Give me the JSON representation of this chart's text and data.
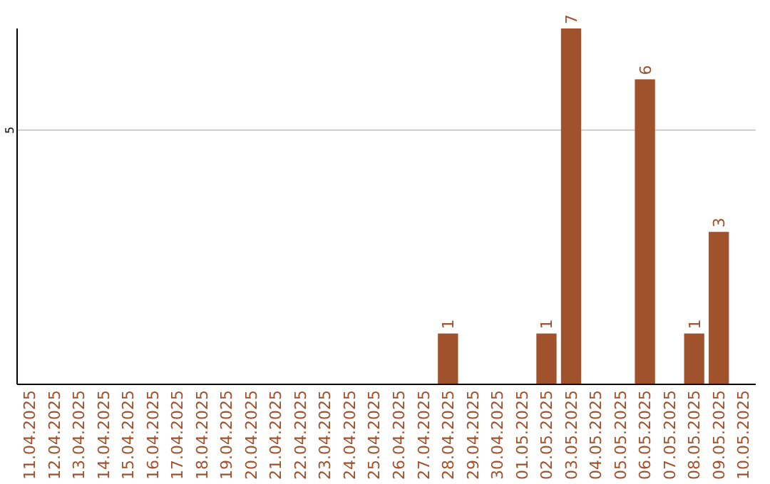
{
  "chart_data": {
    "type": "bar",
    "categories": [
      "11.04.2025",
      "12.04.2025",
      "13.04.2025",
      "14.04.2025",
      "15.04.2025",
      "16.04.2025",
      "17.04.2025",
      "18.04.2025",
      "19.04.2025",
      "20.04.2025",
      "21.04.2025",
      "22.04.2025",
      "23.04.2025",
      "24.04.2025",
      "25.04.2025",
      "26.04.2025",
      "27.04.2025",
      "28.04.2025",
      "29.04.2025",
      "30.04.2025",
      "01.05.2025",
      "02.05.2025",
      "03.05.2025",
      "04.05.2025",
      "05.05.2025",
      "06.05.2025",
      "07.05.2025",
      "08.05.2025",
      "09.05.2025",
      "10.05.2025"
    ],
    "values": [
      null,
      null,
      null,
      null,
      null,
      null,
      null,
      null,
      null,
      null,
      null,
      null,
      null,
      null,
      null,
      null,
      null,
      1,
      null,
      null,
      null,
      1,
      7,
      null,
      null,
      6,
      null,
      1,
      3,
      null
    ],
    "color": "#a0522d",
    "ylim": [
      0,
      7
    ],
    "yticks": [
      5
    ],
    "grid": true,
    "data_labels": true
  }
}
